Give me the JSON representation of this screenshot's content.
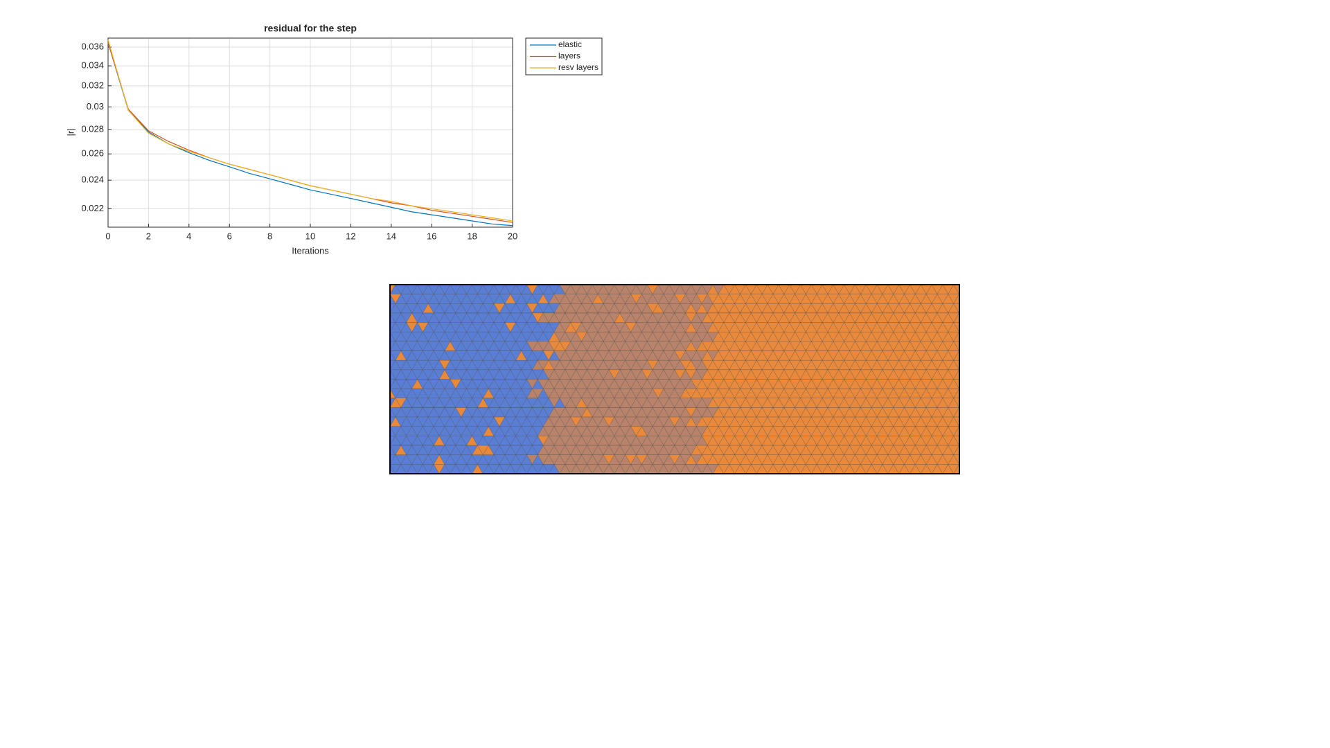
{
  "chart_data": {
    "type": "line",
    "title": "residual for the step",
    "x_label": "Iterations",
    "y_label": "|r|",
    "x": [
      0,
      1,
      2,
      3,
      4,
      5,
      6,
      7,
      8,
      9,
      10,
      11,
      12,
      13,
      14,
      15,
      16,
      17,
      18,
      19,
      20
    ],
    "series": [
      {
        "name": "elastic",
        "color": "#0072bd",
        "values": [
          0.0365,
          0.0297,
          0.0278,
          0.0268,
          0.0261,
          0.0255,
          0.025,
          0.0245,
          0.0241,
          0.0237,
          0.0233,
          0.023,
          0.0227,
          0.0224,
          0.0221,
          0.0218,
          0.0216,
          0.0214,
          0.0212,
          0.021,
          0.0209
        ]
      },
      {
        "name": "layers",
        "color": "#d95319",
        "values": [
          0.0365,
          0.0298,
          0.0279,
          0.027,
          0.0263,
          0.0257,
          0.0252,
          0.0248,
          0.0244,
          0.024,
          0.0236,
          0.0233,
          0.023,
          0.0227,
          0.0224,
          0.0222,
          0.0219,
          0.0217,
          0.0215,
          0.0213,
          0.0211
        ]
      },
      {
        "name": "resv layers",
        "color": "#edb120",
        "values": [
          0.0368,
          0.0297,
          0.0277,
          0.0268,
          0.0262,
          0.0257,
          0.0252,
          0.0248,
          0.0244,
          0.024,
          0.0236,
          0.0233,
          0.023,
          0.0227,
          0.0225,
          0.0222,
          0.022,
          0.0218,
          0.0216,
          0.0214,
          0.0212
        ]
      }
    ],
    "xlim": [
      0,
      20
    ],
    "xticks": [
      0,
      2,
      4,
      6,
      8,
      10,
      12,
      14,
      16,
      18,
      20
    ],
    "ylim": [
      0.0208,
      0.037
    ],
    "yticks": [
      0.022,
      0.024,
      0.026,
      0.028,
      0.03,
      0.032,
      0.034,
      0.036
    ],
    "ylog": true,
    "grid": true,
    "legend": "outside-top-right"
  }
}
